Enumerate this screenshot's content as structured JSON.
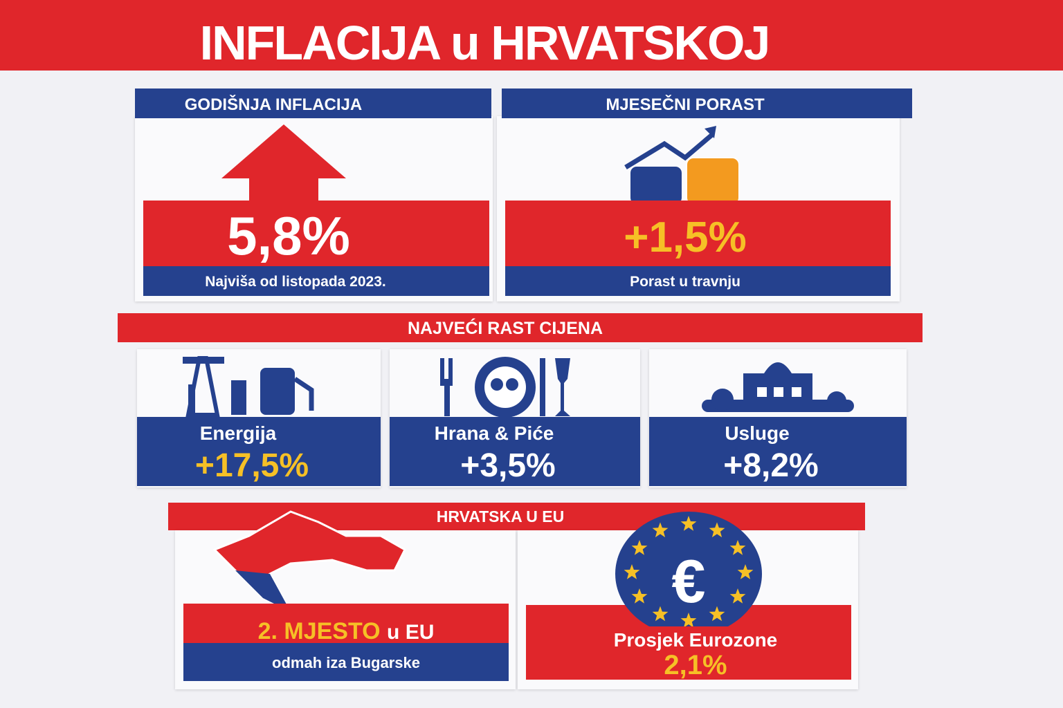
{
  "header": {
    "title": "INFLACIJA u HRVATSKOJ"
  },
  "annual": {
    "title": "GODIŠNJA INFLACIJA",
    "value": "5,8%",
    "note": "Najviša od listopada 2023."
  },
  "monthly": {
    "title": "MJESEČNI PORAST",
    "value": "+1,5%",
    "note": "Porast u travnju"
  },
  "growth": {
    "title": "NAJVEĆI RAST CIJENA",
    "items": [
      {
        "label": "Energija",
        "value": "+17,5%"
      },
      {
        "label": "Hrana & Piće",
        "value": "+3,5%"
      },
      {
        "label": "Usluge",
        "value": "+8,2%"
      }
    ]
  },
  "eu": {
    "title": "HRVATSKA U EU",
    "rank": "2. MJESTO",
    "rank_suffix": "u EU",
    "rank_note": "odmah iza Bugarske",
    "euro_symbol": "€",
    "average_label": "Prosjek Eurozone",
    "average_value": "2,1%"
  }
}
